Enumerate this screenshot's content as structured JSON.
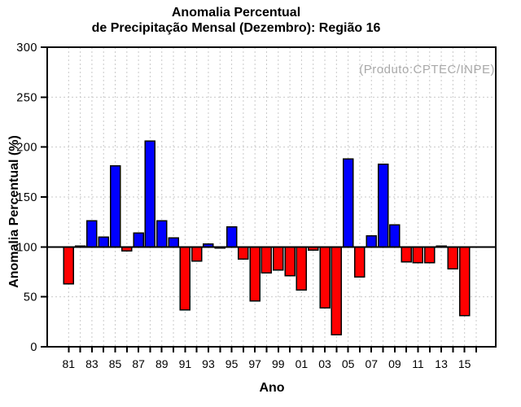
{
  "header": {
    "title_line1": "Anomalia Percentual",
    "title_line2": "de Precipitação Mensal (Dezembro): Região 16",
    "annotation": "(Produto:CPTEC/INPE)"
  },
  "chart_data": {
    "type": "bar",
    "title": "Anomalia Percentual de Precipitação Mensal (Dezembro): Região 16",
    "xlabel": "Ano",
    "ylabel": "Anomalia Percentual (%)",
    "ylim": [
      0,
      300
    ],
    "y_ticks": [
      0,
      50,
      100,
      150,
      200,
      250,
      300
    ],
    "y_tick_labels": [
      "0",
      "50",
      "100",
      "150",
      "200",
      "250",
      "300"
    ],
    "x_tick_labels": [
      "81",
      "83",
      "85",
      "87",
      "89",
      "91",
      "93",
      "95",
      "97",
      "99",
      "01",
      "03",
      "05",
      "07",
      "09",
      "11",
      "13",
      "15"
    ],
    "x_first_tick_year": 1981,
    "x_last_tick_year": 2016,
    "baseline_value": 100,
    "grid": "dashed",
    "legend": "none",
    "years": [
      1981,
      1982,
      1983,
      1984,
      1985,
      1986,
      1987,
      1988,
      1989,
      1990,
      1991,
      1992,
      1993,
      1994,
      1995,
      1996,
      1997,
      1998,
      1999,
      2000,
      2001,
      2002,
      2003,
      2004,
      2005,
      2006,
      2007,
      2008,
      2009,
      2010,
      2011,
      2012,
      2013,
      2014,
      2015
    ],
    "values": [
      63,
      101,
      126,
      110,
      181,
      96,
      114,
      206,
      126,
      109,
      37,
      86,
      103,
      99,
      120,
      88,
      46,
      74,
      77,
      71,
      57,
      97,
      39,
      12,
      188,
      70,
      111,
      183,
      122,
      85,
      84,
      84,
      101,
      78,
      31
    ],
    "colors": {
      "bar_above": "#0000ff",
      "bar_below": "#ff0000",
      "bar_outline": "#000000",
      "baseline": "#000000",
      "frame": "#000000",
      "grid": "#c9c9c9",
      "tick_text": "#000000",
      "annotation_text": "#a9a9a9",
      "background": "#ffffff"
    }
  }
}
